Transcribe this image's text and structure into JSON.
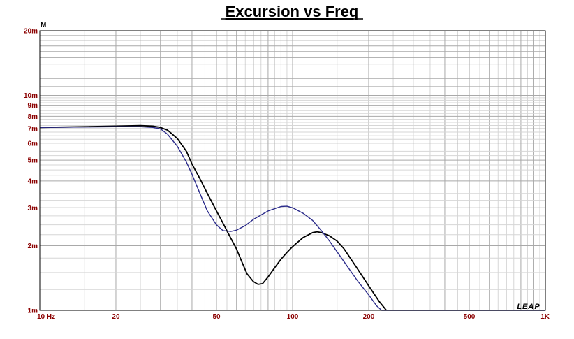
{
  "chart_data": {
    "type": "line",
    "title": "Excursion vs Freq",
    "ylabel": "M",
    "xlabel": "",
    "x_scale": "log",
    "y_scale": "log",
    "xlim": [
      10,
      1000
    ],
    "ylim": [
      0.001,
      0.02
    ],
    "x_tick_labels": [
      {
        "value": 10,
        "label": "10 Hz"
      },
      {
        "value": 20,
        "label": "20"
      },
      {
        "value": 50,
        "label": "50"
      },
      {
        "value": 100,
        "label": "100"
      },
      {
        "value": 200,
        "label": "200"
      },
      {
        "value": 500,
        "label": "500"
      },
      {
        "value": 1000,
        "label": "1K"
      }
    ],
    "y_tick_labels": [
      {
        "value": 0.001,
        "label": "1m"
      },
      {
        "value": 0.002,
        "label": "2m"
      },
      {
        "value": 0.003,
        "label": "3m"
      },
      {
        "value": 0.004,
        "label": "4m"
      },
      {
        "value": 0.005,
        "label": "5m"
      },
      {
        "value": 0.006,
        "label": "6m"
      },
      {
        "value": 0.007,
        "label": "7m"
      },
      {
        "value": 0.008,
        "label": "8m"
      },
      {
        "value": 0.009,
        "label": "9m"
      },
      {
        "value": 0.01,
        "label": "10m"
      },
      {
        "value": 0.02,
        "label": "20m"
      }
    ],
    "grid": true,
    "series": [
      {
        "color": "#000000",
        "points": [
          [
            10,
            0.0071
          ],
          [
            15,
            0.00715
          ],
          [
            20,
            0.0072
          ],
          [
            25,
            0.00724
          ],
          [
            28,
            0.0072
          ],
          [
            30,
            0.0071
          ],
          [
            32,
            0.0069
          ],
          [
            35,
            0.0063
          ],
          [
            38,
            0.0055
          ],
          [
            40,
            0.0048
          ],
          [
            43,
            0.0041
          ],
          [
            46,
            0.0035
          ],
          [
            50,
            0.0029
          ],
          [
            53,
            0.00255
          ],
          [
            56,
            0.00225
          ],
          [
            60,
            0.00193
          ],
          [
            63,
            0.00168
          ],
          [
            66,
            0.00148
          ],
          [
            70,
            0.00136
          ],
          [
            73,
            0.00132
          ],
          [
            76,
            0.00133
          ],
          [
            80,
            0.00143
          ],
          [
            85,
            0.00158
          ],
          [
            90,
            0.00173
          ],
          [
            95,
            0.00186
          ],
          [
            100,
            0.00198
          ],
          [
            110,
            0.00218
          ],
          [
            120,
            0.0023
          ],
          [
            125,
            0.00232
          ],
          [
            130,
            0.0023
          ],
          [
            140,
            0.00222
          ],
          [
            150,
            0.0021
          ],
          [
            160,
            0.00193
          ],
          [
            180,
            0.00157
          ],
          [
            200,
            0.0013
          ],
          [
            220,
            0.0011
          ],
          [
            235,
            0.001
          ]
        ]
      },
      {
        "color": "#2a2a8a",
        "points": [
          [
            10,
            0.0071
          ],
          [
            15,
            0.00713
          ],
          [
            20,
            0.00715
          ],
          [
            25,
            0.00715
          ],
          [
            28,
            0.0071
          ],
          [
            30,
            0.007
          ],
          [
            32,
            0.0066
          ],
          [
            35,
            0.0058
          ],
          [
            38,
            0.0049
          ],
          [
            40,
            0.0043
          ],
          [
            43,
            0.0035
          ],
          [
            46,
            0.0029
          ],
          [
            50,
            0.0025
          ],
          [
            53,
            0.00235
          ],
          [
            57,
            0.00233
          ],
          [
            60,
            0.00236
          ],
          [
            65,
            0.00248
          ],
          [
            70,
            0.00265
          ],
          [
            80,
            0.0029
          ],
          [
            90,
            0.00304
          ],
          [
            95,
            0.00305
          ],
          [
            100,
            0.003
          ],
          [
            110,
            0.00283
          ],
          [
            120,
            0.00262
          ],
          [
            130,
            0.00235
          ],
          [
            140,
            0.0021
          ],
          [
            160,
            0.00168
          ],
          [
            180,
            0.00138
          ],
          [
            200,
            0.00118
          ],
          [
            215,
            0.00105
          ],
          [
            225,
            0.001
          ],
          [
            1000,
            0.001
          ]
        ]
      }
    ]
  },
  "logo": "LEAP"
}
